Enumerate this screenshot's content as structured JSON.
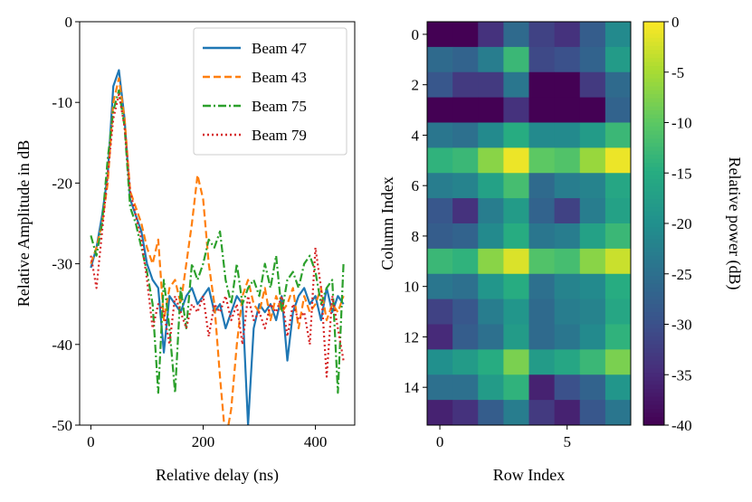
{
  "chart_data": [
    {
      "type": "line",
      "title": "",
      "xlabel": "Relative delay (ns)",
      "ylabel": "Relative Amplitude in dB",
      "xlim": [
        -20,
        470
      ],
      "ylim": [
        -50,
        0
      ],
      "xticks": [
        0,
        200,
        400
      ],
      "yticks": [
        0,
        -10,
        -20,
        -30,
        -40,
        -50
      ],
      "legend_position": "top-right",
      "series": [
        {
          "name": "Beam 47",
          "color": "#1f77b4",
          "dash": "solid",
          "x": [
            0,
            10,
            20,
            30,
            40,
            50,
            60,
            70,
            80,
            90,
            100,
            110,
            120,
            130,
            140,
            150,
            160,
            170,
            180,
            190,
            200,
            210,
            220,
            230,
            240,
            250,
            260,
            270,
            280,
            290,
            300,
            310,
            320,
            330,
            340,
            350,
            360,
            370,
            380,
            390,
            400,
            410,
            420,
            430,
            440,
            450
          ],
          "y": [
            -30.5,
            -28,
            -24,
            -19,
            -8,
            -6,
            -12,
            -22,
            -24,
            -26,
            -30,
            -32,
            -33,
            -41,
            -34,
            -35,
            -36,
            -34,
            -33,
            -35,
            -34,
            -33,
            -36,
            -35,
            -38,
            -36,
            -34,
            -35,
            -50,
            -38,
            -35,
            -36,
            -35,
            -37,
            -34,
            -42,
            -36,
            -34,
            -33,
            -35,
            -34,
            -37,
            -33,
            -36,
            -34,
            -35
          ]
        },
        {
          "name": "Beam 43",
          "color": "#ff7f0e",
          "dash": "8,4",
          "x": [
            0,
            10,
            20,
            30,
            40,
            50,
            60,
            70,
            80,
            90,
            100,
            110,
            120,
            130,
            140,
            150,
            160,
            170,
            180,
            190,
            200,
            210,
            220,
            230,
            240,
            250,
            260,
            270,
            280,
            290,
            300,
            310,
            320,
            330,
            340,
            350,
            360,
            370,
            380,
            390,
            400,
            410,
            420,
            430,
            440,
            450
          ],
          "y": [
            -30,
            -28,
            -25,
            -20,
            -10,
            -7,
            -12,
            -21,
            -23,
            -25,
            -28,
            -30,
            -27,
            -37,
            -33,
            -32,
            -35,
            -30,
            -25,
            -19,
            -22,
            -30,
            -35,
            -44,
            -52,
            -48,
            -40,
            -34,
            -32,
            -35,
            -36,
            -33,
            -37,
            -34,
            -36,
            -35,
            -33,
            -38,
            -34,
            -36,
            -35,
            -33,
            -37,
            -35,
            -36,
            -34
          ]
        },
        {
          "name": "Beam 75",
          "color": "#2ca02c",
          "dash": "9,3,2,3",
          "x": [
            0,
            10,
            20,
            30,
            40,
            50,
            60,
            70,
            80,
            90,
            100,
            110,
            120,
            130,
            140,
            150,
            160,
            170,
            180,
            190,
            200,
            210,
            220,
            230,
            240,
            250,
            260,
            270,
            280,
            290,
            300,
            310,
            320,
            330,
            340,
            350,
            360,
            370,
            380,
            390,
            400,
            410,
            420,
            430,
            440,
            450
          ],
          "y": [
            -26.5,
            -29,
            -25,
            -17,
            -11,
            -8.5,
            -13,
            -23,
            -25,
            -28,
            -31,
            -35,
            -46,
            -32,
            -38,
            -46,
            -33,
            -38,
            -30,
            -32,
            -30,
            -27,
            -28,
            -26,
            -32,
            -35,
            -30,
            -35,
            -33,
            -32,
            -34,
            -30,
            -33,
            -29,
            -36,
            -32,
            -31,
            -33,
            -30,
            -29,
            -31,
            -35,
            -33,
            -32,
            -46,
            -30
          ]
        },
        {
          "name": "Beam 79",
          "color": "#d62728",
          "dash": "2,3",
          "x": [
            0,
            10,
            20,
            30,
            40,
            50,
            60,
            70,
            80,
            90,
            100,
            110,
            120,
            130,
            140,
            150,
            160,
            170,
            180,
            190,
            200,
            210,
            220,
            230,
            240,
            250,
            260,
            270,
            280,
            290,
            300,
            310,
            320,
            330,
            340,
            350,
            360,
            370,
            380,
            390,
            400,
            410,
            420,
            430,
            440,
            450
          ],
          "y": [
            -29,
            -33,
            -26,
            -19,
            -12,
            -9,
            -13,
            -21,
            -24,
            -27,
            -32,
            -38,
            -35,
            -36,
            -40,
            -34,
            -36,
            -38,
            -35,
            -36,
            -34,
            -39,
            -35,
            -36,
            -34,
            -37,
            -35,
            -40,
            -34,
            -37,
            -36,
            -38,
            -35,
            -36,
            -34,
            -39,
            -35,
            -37,
            -36,
            -40,
            -28,
            -33,
            -44,
            -34,
            -38,
            -42
          ]
        }
      ]
    },
    {
      "type": "heatmap",
      "title": "",
      "xlabel": "Row Index",
      "ylabel": "Column Index",
      "xticks": [
        0,
        5
      ],
      "yticks": [
        0,
        2,
        4,
        6,
        8,
        10,
        12,
        14
      ],
      "colorbar_label": "Relative power (dB)",
      "colorbar_ticks": [
        0,
        -5,
        -10,
        -15,
        -20,
        -25,
        -30,
        -35,
        -40
      ],
      "vmin": -40,
      "vmax": 0,
      "values": [
        [
          -40,
          -40,
          -34,
          -26,
          -32,
          -34,
          -28,
          -21
        ],
        [
          -26,
          -27,
          -23,
          -13,
          -31,
          -30,
          -27,
          -18
        ],
        [
          -29,
          -33,
          -33,
          -24,
          -40,
          -40,
          -33,
          -26
        ],
        [
          -40,
          -40,
          -40,
          -34,
          -40,
          -40,
          -40,
          -27
        ],
        [
          -24,
          -25,
          -21,
          -15,
          -21,
          -21,
          -18,
          -13
        ],
        [
          -14,
          -13,
          -7,
          -1,
          -10,
          -11,
          -6,
          -1
        ],
        [
          -23,
          -22,
          -17,
          -12,
          -26,
          -23,
          -22,
          -16
        ],
        [
          -29,
          -34,
          -23,
          -18,
          -27,
          -32,
          -23,
          -17
        ],
        [
          -28,
          -27,
          -21,
          -15,
          -24,
          -23,
          -17,
          -13
        ],
        [
          -13,
          -14,
          -7,
          -2,
          -11,
          -12,
          -7,
          -3
        ],
        [
          -24,
          -25,
          -19,
          -15,
          -25,
          -22,
          -21,
          -15
        ],
        [
          -32,
          -29,
          -23,
          -19,
          -26,
          -23,
          -22,
          -16
        ],
        [
          -35,
          -28,
          -25,
          -18,
          -26,
          -24,
          -21,
          -14
        ],
        [
          -20,
          -18,
          -15,
          -8,
          -18,
          -16,
          -13,
          -8
        ],
        [
          -25,
          -25,
          -18,
          -14,
          -36,
          -30,
          -27,
          -19
        ],
        [
          -36,
          -34,
          -28,
          -23,
          -33,
          -36,
          -29,
          -24
        ]
      ]
    }
  ]
}
